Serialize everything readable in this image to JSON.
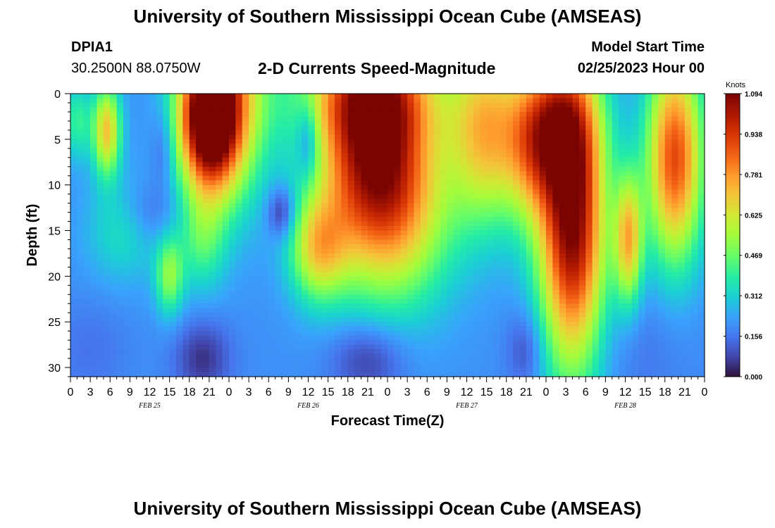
{
  "header": {
    "title": "University of Southern Mississippi Ocean Cube (AMSEAS)",
    "station_id": "DPIA1",
    "station_coords": "30.2500N  88.0750W",
    "chart_title": "2-D Currents Speed-Magnitude",
    "model_start_label": "Model Start Time",
    "model_start_value": "02/25/2023 Hour 00"
  },
  "footer": {
    "title": "University of Southern Mississippi Ocean Cube (AMSEAS)"
  },
  "chart_data": {
    "type": "heatmap",
    "title": "2-D Currents Speed-Magnitude",
    "xlabel": "Forecast Time(Z)",
    "ylabel": "Depth (ft)",
    "x_unit": "hours from model start",
    "xlim": [
      0,
      96
    ],
    "ylim": [
      0,
      31
    ],
    "x_ticks": [
      {
        "h": 0,
        "label": "0"
      },
      {
        "h": 3,
        "label": "3"
      },
      {
        "h": 6,
        "label": "6"
      },
      {
        "h": 9,
        "label": "9"
      },
      {
        "h": 12,
        "label": "12"
      },
      {
        "h": 15,
        "label": "15"
      },
      {
        "h": 18,
        "label": "18"
      },
      {
        "h": 21,
        "label": "21"
      },
      {
        "h": 24,
        "label": "0"
      },
      {
        "h": 27,
        "label": "3"
      },
      {
        "h": 30,
        "label": "6"
      },
      {
        "h": 33,
        "label": "9"
      },
      {
        "h": 36,
        "label": "12"
      },
      {
        "h": 39,
        "label": "15"
      },
      {
        "h": 42,
        "label": "18"
      },
      {
        "h": 45,
        "label": "21"
      },
      {
        "h": 48,
        "label": "0"
      },
      {
        "h": 51,
        "label": "3"
      },
      {
        "h": 54,
        "label": "6"
      },
      {
        "h": 57,
        "label": "9"
      },
      {
        "h": 60,
        "label": "12"
      },
      {
        "h": 63,
        "label": "15"
      },
      {
        "h": 66,
        "label": "18"
      },
      {
        "h": 69,
        "label": "21"
      },
      {
        "h": 72,
        "label": "0"
      },
      {
        "h": 75,
        "label": "3"
      },
      {
        "h": 78,
        "label": "6"
      },
      {
        "h": 81,
        "label": "9"
      },
      {
        "h": 84,
        "label": "12"
      },
      {
        "h": 87,
        "label": "15"
      },
      {
        "h": 90,
        "label": "18"
      },
      {
        "h": 93,
        "label": "21"
      },
      {
        "h": 96,
        "label": "0"
      }
    ],
    "date_labels": [
      {
        "h": 12,
        "label": "FEB 25"
      },
      {
        "h": 36,
        "label": "FEB 26"
      },
      {
        "h": 60,
        "label": "FEB 27"
      },
      {
        "h": 84,
        "label": "FEB 28"
      }
    ],
    "y_ticks": [
      0,
      5,
      10,
      15,
      20,
      25,
      30
    ],
    "colorbar": {
      "label": "Knots",
      "min": 0.0,
      "max": 1.094,
      "ticks": [
        "0.000",
        "0.156",
        "0.312",
        "0.469",
        "0.625",
        "0.781",
        "0.938",
        "1.094"
      ]
    },
    "features": [
      {
        "h": 5.5,
        "d": 4,
        "sh": 1.5,
        "sd": 3.5,
        "v": 0.5
      },
      {
        "h": 21,
        "d": 3,
        "sh": 3,
        "sd": 5,
        "v": 0.78
      },
      {
        "h": 23,
        "d": 0,
        "sh": 4.5,
        "sd": 8,
        "v": 0.6
      },
      {
        "h": 46,
        "d": 6,
        "sh": 6,
        "sd": 9,
        "v": 0.85
      },
      {
        "h": 45,
        "d": 0,
        "sh": 8,
        "sd": 4,
        "v": 0.3
      },
      {
        "h": 51,
        "d": 14,
        "sh": 6,
        "sd": 7,
        "v": 0.22
      },
      {
        "h": 63,
        "d": 4,
        "sh": 4,
        "sd": 7,
        "v": 0.5
      },
      {
        "h": 70,
        "d": 6,
        "sh": 3,
        "sd": 6,
        "v": 0.35
      },
      {
        "h": 76,
        "d": 14,
        "sh": 3.5,
        "sd": 11,
        "v": 0.9
      },
      {
        "h": 74,
        "d": 3,
        "sh": 4,
        "sd": 5,
        "v": 0.4
      },
      {
        "h": 91.5,
        "d": 7,
        "sh": 3,
        "sd": 8,
        "v": 0.7
      },
      {
        "h": 84.5,
        "d": 16,
        "sh": 1.5,
        "sd": 5,
        "v": 0.5
      },
      {
        "h": 15,
        "d": 20,
        "sh": 1.5,
        "sd": 3,
        "v": 0.3
      },
      {
        "h": 37.5,
        "d": 17,
        "sh": 3,
        "sd": 4,
        "v": 0.4
      },
      {
        "h": 20,
        "d": 16,
        "sh": 2.5,
        "sd": 4,
        "v": 0.2
      },
      {
        "h": 1,
        "d": 3,
        "sh": 1.5,
        "sd": 3,
        "v": 0.2
      },
      {
        "h": 8,
        "d": 15,
        "sh": 4,
        "sd": 4,
        "v": 0.15
      },
      {
        "h": 14,
        "d": 6,
        "sh": 1.2,
        "sd": 3,
        "v": -0.1
      },
      {
        "h": 12,
        "d": 13,
        "sh": 3,
        "sd": 2.5,
        "v": -0.1
      },
      {
        "h": 32,
        "d": 13,
        "sh": 1.5,
        "sd": 2,
        "v": -0.2
      },
      {
        "h": 36,
        "d": 5,
        "sh": 1.2,
        "sd": 3,
        "v": -0.2
      },
      {
        "h": 20,
        "d": 29,
        "sh": 3,
        "sd": 3,
        "v": -0.15
      },
      {
        "h": 45,
        "d": 29,
        "sh": 4,
        "sd": 3,
        "v": -0.15
      },
      {
        "h": 69,
        "d": 28,
        "sh": 2,
        "sd": 3,
        "v": -0.12
      },
      {
        "h": 3,
        "d": 28,
        "sh": 4,
        "sd": 4,
        "v": -0.05
      },
      {
        "h": 86,
        "d": 27,
        "sh": 6,
        "sd": 5,
        "v": -0.05
      }
    ]
  }
}
